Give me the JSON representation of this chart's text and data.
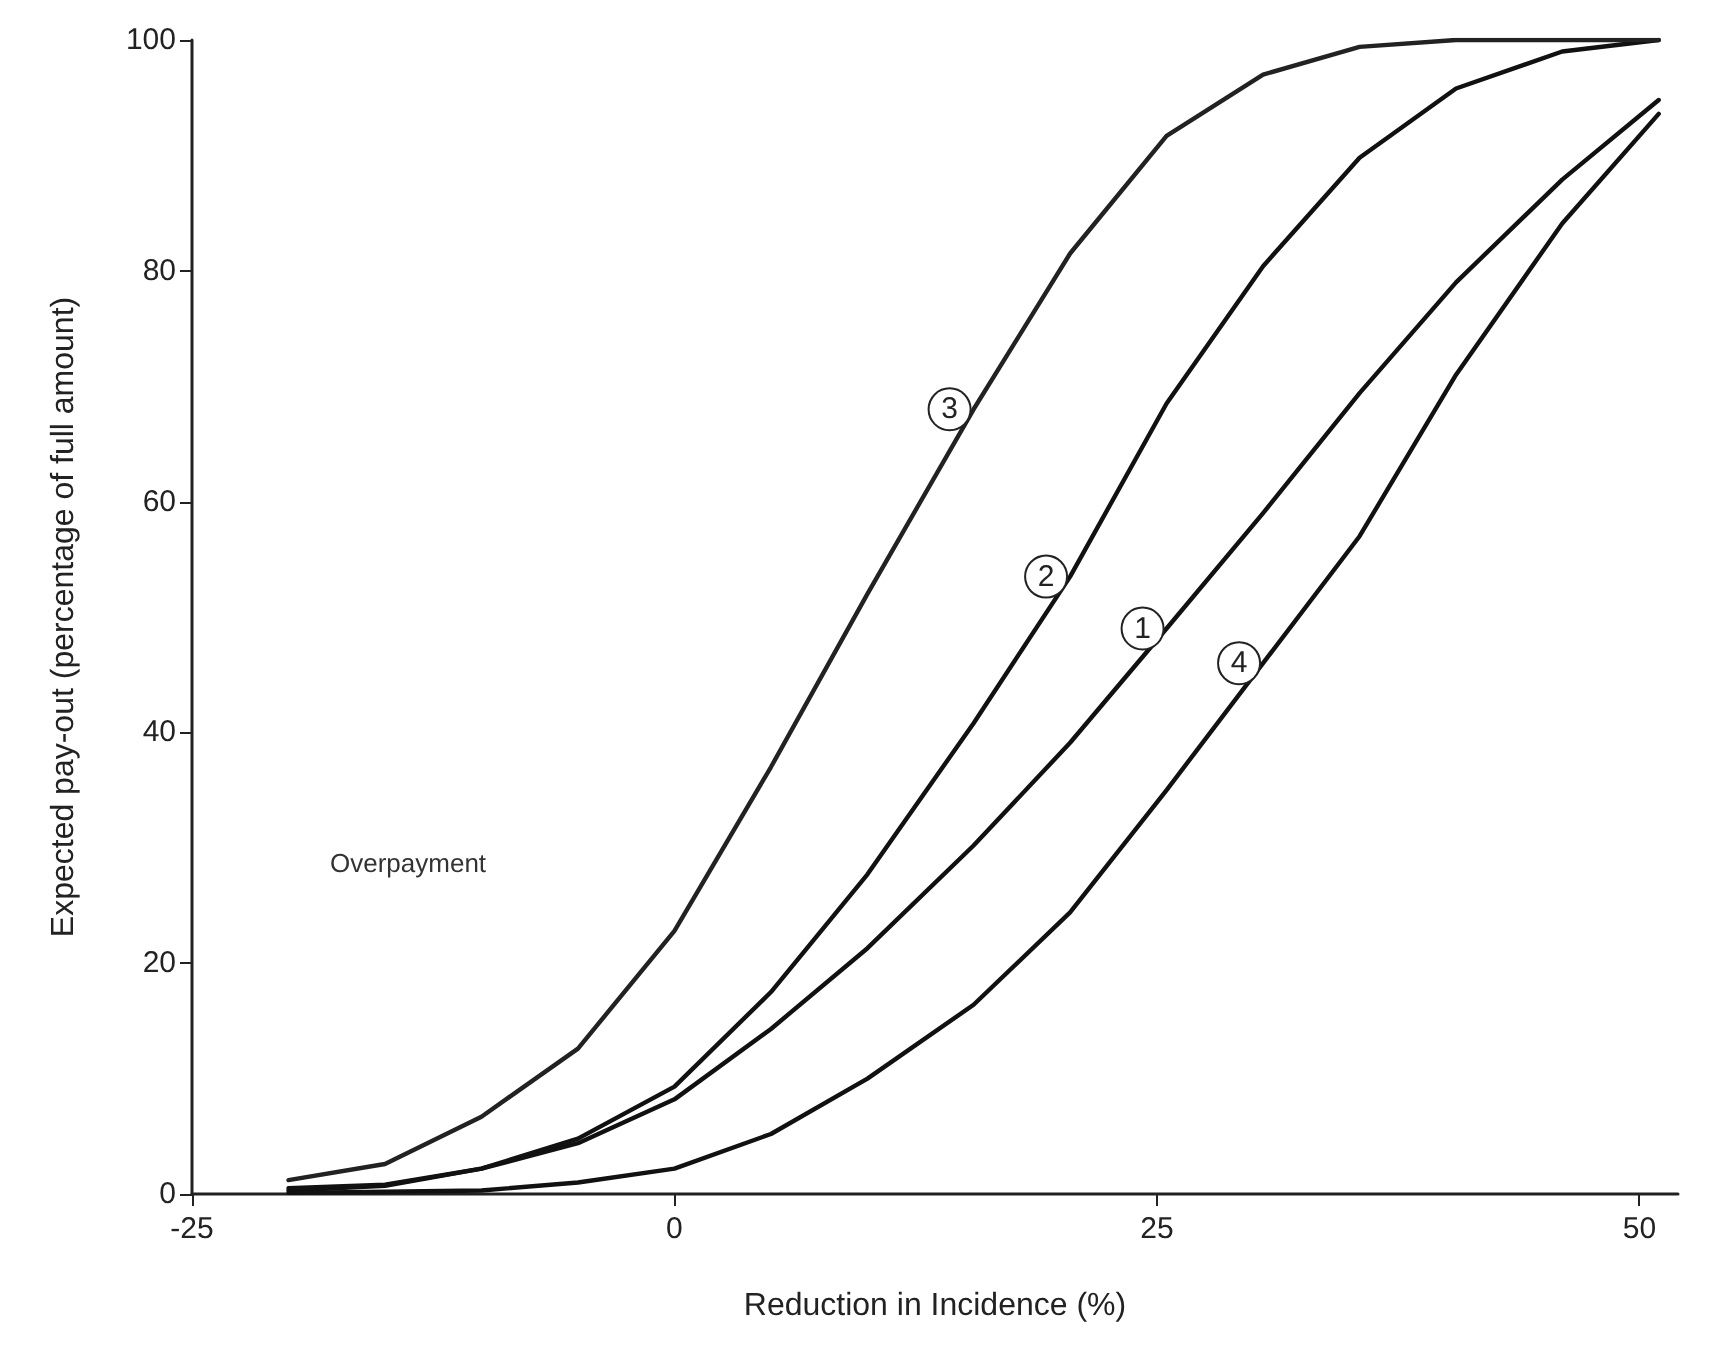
{
  "chart_data": {
    "type": "line",
    "xlabel": "Reduction in Incidence (%)",
    "ylabel": "Expected pay-out (percentage of full amount)",
    "x": [
      -20,
      -15,
      -10,
      -5,
      0,
      5,
      10,
      15.5,
      20.5,
      25.5,
      30.5,
      35.5,
      40.5,
      46,
      51
    ],
    "series": [
      {
        "name": "1",
        "color": "#111111",
        "values": [
          0.3,
          0.7,
          2.2,
          4.4,
          8.2,
          14.3,
          21.3,
          30.2,
          39.1,
          49,
          59,
          69.4,
          79,
          87.9,
          94.8
        ]
      },
      {
        "name": "2",
        "color": "#111111",
        "values": [
          0.5,
          0.8,
          2.2,
          4.8,
          9.3,
          17.5,
          27.7,
          40.8,
          53.5,
          68.5,
          80.4,
          89.8,
          95.8,
          99,
          100
        ]
      },
      {
        "name": "3",
        "color": "#222222",
        "values": [
          1.2,
          2.6,
          6.7,
          12.6,
          22.8,
          37,
          52,
          68,
          81.5,
          91.7,
          97,
          99.4,
          100,
          100,
          100
        ]
      },
      {
        "name": "4",
        "color": "#111111",
        "values": [
          0.1,
          0.2,
          0.3,
          1.0,
          2.2,
          5.2,
          10,
          16.4,
          24.4,
          35,
          46,
          57,
          71,
          84.1,
          93.6
        ]
      }
    ],
    "xlim": [
      -25,
      52
    ],
    "xticks": [
      -25,
      0,
      25,
      50
    ],
    "ylim": [
      0,
      100
    ],
    "yticks": [
      0,
      20,
      40,
      60,
      80,
      100
    ],
    "annotations": [
      "Overpayment"
    ],
    "grid": false,
    "legend": false,
    "marker": "none",
    "line_style": "solid"
  }
}
